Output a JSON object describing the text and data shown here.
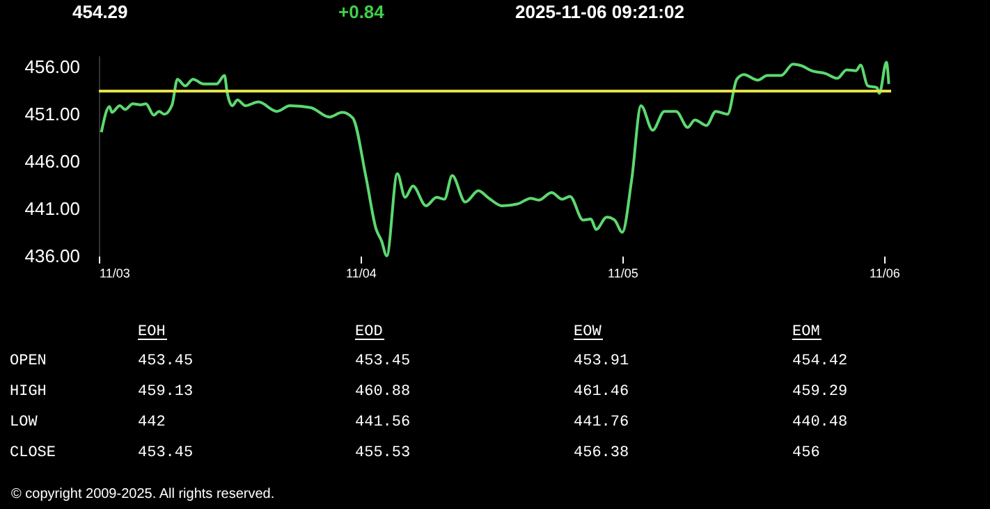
{
  "chart_data": {
    "type": "line",
    "title": "454.29",
    "annotations": [
      "+0.84",
      "2025-11-06 09:21:02",
      "EOH",
      "EOD",
      "EOW",
      "EOM",
      "OPEN",
      "453.45",
      "453.45",
      "453.91",
      "454.42",
      "HIGH",
      "459.13",
      "460.88",
      "461.46",
      "459.29",
      "LOW",
      "442",
      "441.56",
      "441.76",
      "440.48",
      "CLOSE",
      "453.45",
      "455.53",
      "456.38",
      "456",
      "© copyright 2009-2025. All rights reserved."
    ],
    "x": [
      "2025-11-03T00:14",
      "2025-11-03T00:58",
      "2025-11-03T01:12",
      "2025-11-03T01:55",
      "2025-11-03T02:24",
      "2025-11-03T03:07",
      "2025-11-03T03:50",
      "2025-11-03T04:19",
      "2025-11-03T05:02",
      "2025-11-03T05:31",
      "2025-11-03T06:00",
      "2025-11-03T06:43",
      "2025-11-03T07:12",
      "2025-11-03T07:55",
      "2025-11-03T08:38",
      "2025-11-03T09:36",
      "2025-11-03T10:48",
      "2025-11-03T11:31",
      "2025-11-03T11:46",
      "2025-11-03T12:14",
      "2025-11-03T12:43",
      "2025-11-03T13:26",
      "2025-11-03T14:38",
      "2025-11-03T16:19",
      "2025-11-03T17:31",
      "2025-11-03T19:26",
      "2025-11-03T21:07",
      "2025-11-03T22:19",
      "2025-11-03T23:17",
      "2025-11-04T00:29",
      "2025-11-04T01:26",
      "2025-11-04T01:55",
      "2025-11-04T02:24",
      "2025-11-04T03:22",
      "2025-11-04T04:05",
      "2025-11-04T04:48",
      "2025-11-04T06:00",
      "2025-11-04T06:58",
      "2025-11-04T07:41",
      "2025-11-04T08:24",
      "2025-11-04T09:36",
      "2025-11-04T10:48",
      "2025-11-04T11:46",
      "2025-11-04T12:58",
      "2025-11-04T14:24",
      "2025-11-04T15:36",
      "2025-11-04T16:19",
      "2025-11-04T17:31",
      "2025-11-04T18:29",
      "2025-11-04T19:12",
      "2025-11-04T20:24",
      "2025-11-04T21:07",
      "2025-11-04T21:36",
      "2025-11-04T22:34",
      "2025-11-04T23:17",
      "2025-11-05T00:00",
      "2025-11-05T00:51",
      "2025-11-05T01:43",
      "2025-11-05T02:47",
      "2025-11-05T03:51",
      "2025-11-05T04:56",
      "2025-11-05T06:00",
      "2025-11-05T06:39",
      "2025-11-05T07:43",
      "2025-11-05T08:34",
      "2025-11-05T09:39",
      "2025-11-05T10:30",
      "2025-11-05T11:09",
      "2025-11-05T12:26",
      "2025-11-05T13:17",
      "2025-11-05T14:34",
      "2025-11-05T15:39",
      "2025-11-05T16:30",
      "2025-11-05T17:21",
      "2025-11-05T18:39",
      "2025-11-05T19:43",
      "2025-11-05T20:34",
      "2025-11-05T21:26",
      "2025-11-05T21:51",
      "2025-11-05T22:30",
      "2025-11-05T23:21",
      "2025-11-05T23:34",
      "2025-11-06T00:13",
      "2025-11-06T00:26"
    ],
    "series": [
      {
        "color": "#5cd870",
        "values": [
          449.1,
          451.8,
          451.2,
          451.9,
          451.5,
          452.1,
          452.0,
          452.1,
          450.9,
          451.3,
          451.0,
          452.0,
          454.7,
          454.0,
          454.7,
          454.2,
          454.2,
          455.1,
          453.3,
          451.9,
          452.5,
          451.9,
          452.3,
          451.3,
          451.9,
          451.7,
          450.7,
          451.2,
          450.6,
          444.4,
          438.8,
          437.6,
          436.0,
          444.7,
          442.2,
          443.4,
          441.3,
          442.2,
          442.0,
          444.5,
          441.7,
          442.9,
          442.1,
          441.3,
          441.5,
          442.1,
          441.9,
          442.7,
          442.0,
          442.3,
          439.8,
          439.9,
          438.8,
          440.1,
          439.8,
          438.5,
          444.0,
          451.9,
          449.3,
          451.3,
          451.3,
          449.6,
          450.4,
          449.8,
          451.3,
          451.0,
          454.7,
          455.2,
          454.6,
          455.1,
          455.1,
          456.3,
          456.1,
          455.6,
          455.3,
          454.8,
          455.7,
          455.6,
          456.2,
          454.0,
          453.8,
          453.2,
          456.5,
          454.2
        ]
      }
    ],
    "xlim": [
      "2025-11-03T00:00",
      "2025-11-06T00:39"
    ],
    "xticks": [
      {
        "value": "2025-11-03",
        "label": "11/03"
      },
      {
        "value": "2025-11-04",
        "label": "11/04"
      },
      {
        "value": "2025-11-05",
        "label": "11/05"
      },
      {
        "value": "2025-11-06",
        "label": "11/06"
      }
    ],
    "ylim": [
      436,
      457.2
    ],
    "yticks": [
      {
        "value": 436,
        "label": "436.00"
      },
      {
        "value": 441,
        "label": "441.00"
      },
      {
        "value": 446,
        "label": "446.00"
      },
      {
        "value": 451,
        "label": "451.00"
      },
      {
        "value": 456,
        "label": "456.00"
      }
    ],
    "ref_lines": [
      {
        "axis": "y",
        "value": 453.45,
        "color": "#e2e24c"
      }
    ]
  }
}
